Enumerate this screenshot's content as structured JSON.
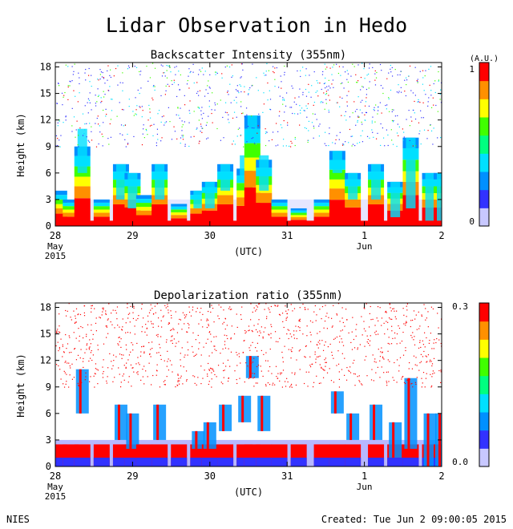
{
  "page": {
    "title": "Lidar Observation in Hedo",
    "footer_left": "NIES",
    "footer_right": "Created: Tue Jun  2 09:00:05 2015"
  },
  "colors": {
    "scale": [
      "#ffffff",
      "#c8c8ff",
      "#3232ff",
      "#0090ff",
      "#00e0ff",
      "#00ff80",
      "#40ff00",
      "#ffff00",
      "#ff9000",
      "#ff0000"
    ],
    "frame": "#000000",
    "background": "#ffffff"
  },
  "chart_data": [
    {
      "type": "heatmap",
      "title": "Backscatter Intensity (355nm)",
      "ylabel": "Height (km)",
      "xlabel": "(UTC)",
      "ylim": [
        0,
        18.5
      ],
      "yticks": [
        0,
        3,
        6,
        9,
        12,
        15,
        18
      ],
      "xlim": [
        0,
        5
      ],
      "x_ticks": [
        {
          "value": 0,
          "label": "28",
          "sub1": "May",
          "sub2": "2015"
        },
        {
          "value": 1,
          "label": "29",
          "sub1": "",
          "sub2": ""
        },
        {
          "value": 2,
          "label": "30",
          "sub1": "",
          "sub2": ""
        },
        {
          "value": 3,
          "label": "31",
          "sub1": "",
          "sub2": ""
        },
        {
          "value": 4,
          "label": "1",
          "sub1": "Jun",
          "sub2": ""
        },
        {
          "value": 5,
          "label": "2",
          "sub1": "",
          "sub2": ""
        }
      ],
      "colorbar": {
        "unit": "(A.U.)",
        "min_label": "0",
        "max_label": "1",
        "min": 0,
        "max": 1
      },
      "columns": [
        {
          "x": 0.05,
          "top_km": 4.0,
          "cloud": null
        },
        {
          "x": 0.2,
          "top_km": 3.0,
          "cloud": null
        },
        {
          "x": 0.35,
          "top_km": 9.0,
          "cloud": [
            6,
            11
          ]
        },
        {
          "x": 0.6,
          "top_km": 3.0,
          "cloud": null
        },
        {
          "x": 0.85,
          "top_km": 7.0,
          "cloud": [
            3,
            7
          ]
        },
        {
          "x": 1.0,
          "top_km": 6.0,
          "cloud": [
            2,
            6
          ]
        },
        {
          "x": 1.15,
          "top_km": 3.5,
          "cloud": null
        },
        {
          "x": 1.35,
          "top_km": 7.0,
          "cloud": [
            3,
            7
          ]
        },
        {
          "x": 1.6,
          "top_km": 2.5,
          "cloud": null
        },
        {
          "x": 1.85,
          "top_km": 4.0,
          "cloud": [
            2,
            4
          ]
        },
        {
          "x": 2.0,
          "top_km": 5.0,
          "cloud": [
            2,
            5
          ]
        },
        {
          "x": 2.2,
          "top_km": 7.0,
          "cloud": [
            4,
            7
          ]
        },
        {
          "x": 2.45,
          "top_km": 6.5,
          "cloud": [
            5,
            8
          ]
        },
        {
          "x": 2.55,
          "top_km": 12.5,
          "cloud": [
            10,
            12.5
          ]
        },
        {
          "x": 2.7,
          "top_km": 7.5,
          "cloud": [
            4,
            8
          ]
        },
        {
          "x": 2.9,
          "top_km": 3.0,
          "cloud": null
        },
        {
          "x": 3.15,
          "top_km": 2.0,
          "cloud": null
        },
        {
          "x": 3.45,
          "top_km": 3.0,
          "cloud": null
        },
        {
          "x": 3.65,
          "top_km": 8.5,
          "cloud": [
            6,
            8.5
          ]
        },
        {
          "x": 3.85,
          "top_km": 6.0,
          "cloud": [
            3,
            6
          ]
        },
        {
          "x": 4.15,
          "top_km": 7.0,
          "cloud": [
            3,
            7
          ]
        },
        {
          "x": 4.4,
          "top_km": 5.0,
          "cloud": [
            1,
            5
          ]
        },
        {
          "x": 4.6,
          "top_km": 10.0,
          "cloud": [
            2,
            10
          ]
        },
        {
          "x": 4.85,
          "top_km": 6.0,
          "cloud": [
            0,
            6
          ]
        },
        {
          "x": 5.0,
          "top_km": 6.0,
          "cloud": [
            0,
            6
          ]
        }
      ]
    },
    {
      "type": "heatmap",
      "title": "Depolarization ratio (355nm)",
      "ylabel": "Height (km)",
      "xlabel": "(UTC)",
      "ylim": [
        0,
        18.5
      ],
      "yticks": [
        0,
        3,
        6,
        9,
        12,
        15,
        18
      ],
      "xlim": [
        0,
        5
      ],
      "x_ticks": [
        {
          "value": 0,
          "label": "28",
          "sub1": "May",
          "sub2": "2015"
        },
        {
          "value": 1,
          "label": "29",
          "sub1": "",
          "sub2": ""
        },
        {
          "value": 2,
          "label": "30",
          "sub1": "",
          "sub2": ""
        },
        {
          "value": 3,
          "label": "31",
          "sub1": "",
          "sub2": ""
        },
        {
          "value": 4,
          "label": "1",
          "sub1": "Jun",
          "sub2": ""
        },
        {
          "value": 5,
          "label": "2",
          "sub1": "",
          "sub2": ""
        }
      ],
      "colorbar": {
        "unit": "",
        "min_label": "0.0",
        "max_label": "0.3",
        "min": 0,
        "max": 0.3
      },
      "columns": [
        {
          "x": 0.05,
          "top_km": 4.0,
          "cloud": null
        },
        {
          "x": 0.2,
          "top_km": 3.0,
          "cloud": null
        },
        {
          "x": 0.35,
          "top_km": 9.0,
          "cloud": [
            6,
            11
          ]
        },
        {
          "x": 0.6,
          "top_km": 3.0,
          "cloud": null
        },
        {
          "x": 0.85,
          "top_km": 7.0,
          "cloud": [
            3,
            7
          ]
        },
        {
          "x": 1.0,
          "top_km": 6.0,
          "cloud": [
            2,
            6
          ]
        },
        {
          "x": 1.15,
          "top_km": 3.5,
          "cloud": null
        },
        {
          "x": 1.35,
          "top_km": 7.0,
          "cloud": [
            3,
            7
          ]
        },
        {
          "x": 1.6,
          "top_km": 2.5,
          "cloud": null
        },
        {
          "x": 1.85,
          "top_km": 4.0,
          "cloud": [
            2,
            4
          ]
        },
        {
          "x": 2.0,
          "top_km": 5.0,
          "cloud": [
            2,
            5
          ]
        },
        {
          "x": 2.2,
          "top_km": 7.0,
          "cloud": [
            4,
            7
          ]
        },
        {
          "x": 2.45,
          "top_km": 6.5,
          "cloud": [
            5,
            8
          ]
        },
        {
          "x": 2.55,
          "top_km": 12.5,
          "cloud": [
            10,
            12.5
          ]
        },
        {
          "x": 2.7,
          "top_km": 7.5,
          "cloud": [
            4,
            8
          ]
        },
        {
          "x": 2.9,
          "top_km": 3.0,
          "cloud": null
        },
        {
          "x": 3.15,
          "top_km": 2.0,
          "cloud": null
        },
        {
          "x": 3.45,
          "top_km": 3.0,
          "cloud": null
        },
        {
          "x": 3.65,
          "top_km": 8.5,
          "cloud": [
            6,
            8.5
          ]
        },
        {
          "x": 3.85,
          "top_km": 6.0,
          "cloud": [
            3,
            6
          ]
        },
        {
          "x": 4.15,
          "top_km": 7.0,
          "cloud": [
            3,
            7
          ]
        },
        {
          "x": 4.4,
          "top_km": 5.0,
          "cloud": [
            1,
            5
          ]
        },
        {
          "x": 4.6,
          "top_km": 10.0,
          "cloud": [
            2,
            10
          ]
        },
        {
          "x": 4.85,
          "top_km": 6.0,
          "cloud": [
            0,
            6
          ]
        },
        {
          "x": 5.0,
          "top_km": 6.0,
          "cloud": [
            0,
            6
          ]
        }
      ]
    }
  ]
}
